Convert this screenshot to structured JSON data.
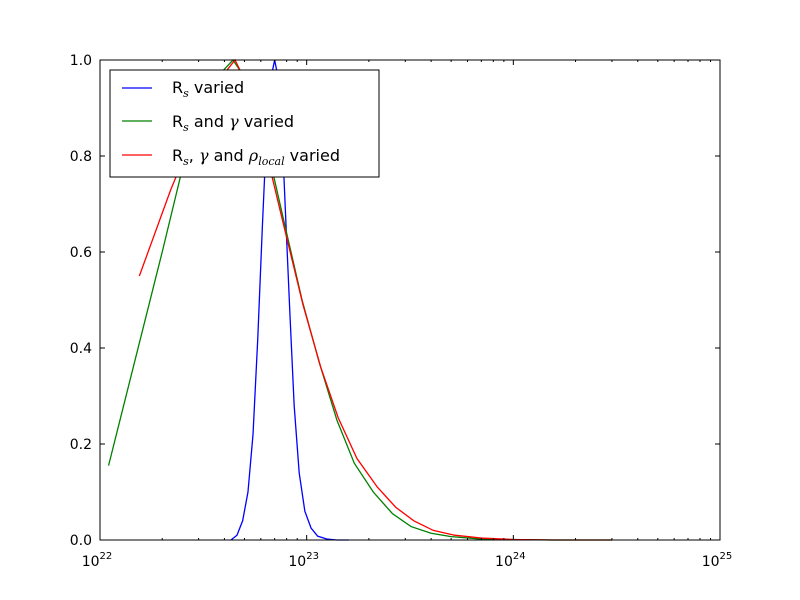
{
  "chart_data": {
    "type": "line",
    "xscale": "log",
    "xlim": [
      1e+22,
      1e+25
    ],
    "ylim": [
      0.0,
      1.0
    ],
    "grid": false,
    "legend_placement": "upper-left",
    "xlabel": "",
    "ylabel": "",
    "title": "",
    "x_ticks": [
      {
        "base": "10",
        "exp": "22",
        "value": 1e+22
      },
      {
        "base": "10",
        "exp": "23",
        "value": 1e+23
      },
      {
        "base": "10",
        "exp": "24",
        "value": 1e+24
      },
      {
        "base": "10",
        "exp": "25",
        "value": 1e+25
      }
    ],
    "y_ticks": [
      {
        "label": "0.0",
        "value": 0.0
      },
      {
        "label": "0.2",
        "value": 0.2
      },
      {
        "label": "0.4",
        "value": 0.4
      },
      {
        "label": "0.6",
        "value": 0.6
      },
      {
        "label": "0.8",
        "value": 0.8
      },
      {
        "label": "1.0",
        "value": 1.0
      }
    ],
    "series": [
      {
        "name": "R_s varied",
        "color": "#0000ff",
        "points": [
          [
            4.3e+22,
            0.0
          ],
          [
            4.6e+22,
            0.01
          ],
          [
            4.9e+22,
            0.04
          ],
          [
            5.2e+22,
            0.1
          ],
          [
            5.5e+22,
            0.22
          ],
          [
            5.8e+22,
            0.42
          ],
          [
            6.1e+22,
            0.65
          ],
          [
            6.4e+22,
            0.85
          ],
          [
            6.7e+22,
            0.96
          ],
          [
            7e+22,
            1.0
          ],
          [
            7.3e+22,
            0.96
          ],
          [
            7.6e+22,
            0.85
          ],
          [
            7.9e+22,
            0.68
          ],
          [
            8.3e+22,
            0.47
          ],
          [
            8.7e+22,
            0.28
          ],
          [
            9.2e+22,
            0.14
          ],
          [
            9.8e+22,
            0.06
          ],
          [
            1.05e+23,
            0.025
          ],
          [
            1.13e+23,
            0.008
          ],
          [
            1.25e+23,
            0.002
          ],
          [
            1.4e+23,
            0.0
          ],
          [
            1.6e+23,
            0.0
          ]
        ]
      },
      {
        "name": "R_s and γ varied",
        "color": "#008000",
        "points": [
          [
            1.1e+22,
            0.155
          ],
          [
            2e+22,
            0.6
          ],
          [
            2.8e+22,
            0.86
          ],
          [
            3.6e+22,
            0.96
          ],
          [
            4.4e+22,
            1.0
          ],
          [
            4.9e+22,
            0.97
          ],
          [
            5.6e+22,
            0.91
          ],
          [
            6.5e+22,
            0.81
          ],
          [
            7.8e+22,
            0.66
          ],
          [
            9.5e+22,
            0.5
          ],
          [
            1.15e+23,
            0.37
          ],
          [
            1.4e+23,
            0.25
          ],
          [
            1.7e+23,
            0.16
          ],
          [
            2.1e+23,
            0.1
          ],
          [
            2.6e+23,
            0.055
          ],
          [
            3.2e+23,
            0.028
          ],
          [
            4e+23,
            0.014
          ],
          [
            5e+23,
            0.007
          ],
          [
            7e+23,
            0.002
          ],
          [
            1e+24,
            0.001
          ],
          [
            1.5e+24,
            0.0
          ],
          [
            3e+24,
            0.0
          ]
        ]
      },
      {
        "name": "R_s, γ and ρ_local varied",
        "color": "#ff0000",
        "points": [
          [
            1.55e+22,
            0.55
          ],
          [
            2.2e+22,
            0.73
          ],
          [
            3e+22,
            0.87
          ],
          [
            3.8e+22,
            0.96
          ],
          [
            4.5e+22,
            1.0
          ],
          [
            5e+22,
            0.96
          ],
          [
            5.7e+22,
            0.89
          ],
          [
            6.6e+22,
            0.78
          ],
          [
            7.9e+22,
            0.64
          ],
          [
            9.6e+22,
            0.49
          ],
          [
            1.17e+23,
            0.36
          ],
          [
            1.42e+23,
            0.255
          ],
          [
            1.75e+23,
            0.17
          ],
          [
            2.2e+23,
            0.11
          ],
          [
            2.7e+23,
            0.068
          ],
          [
            3.3e+23,
            0.04
          ],
          [
            4.1e+23,
            0.02
          ],
          [
            5.2e+23,
            0.01
          ],
          [
            7e+23,
            0.004
          ],
          [
            1e+24,
            0.001
          ],
          [
            1.6e+24,
            0.0
          ],
          [
            3e+24,
            0.0
          ]
        ]
      }
    ]
  }
}
